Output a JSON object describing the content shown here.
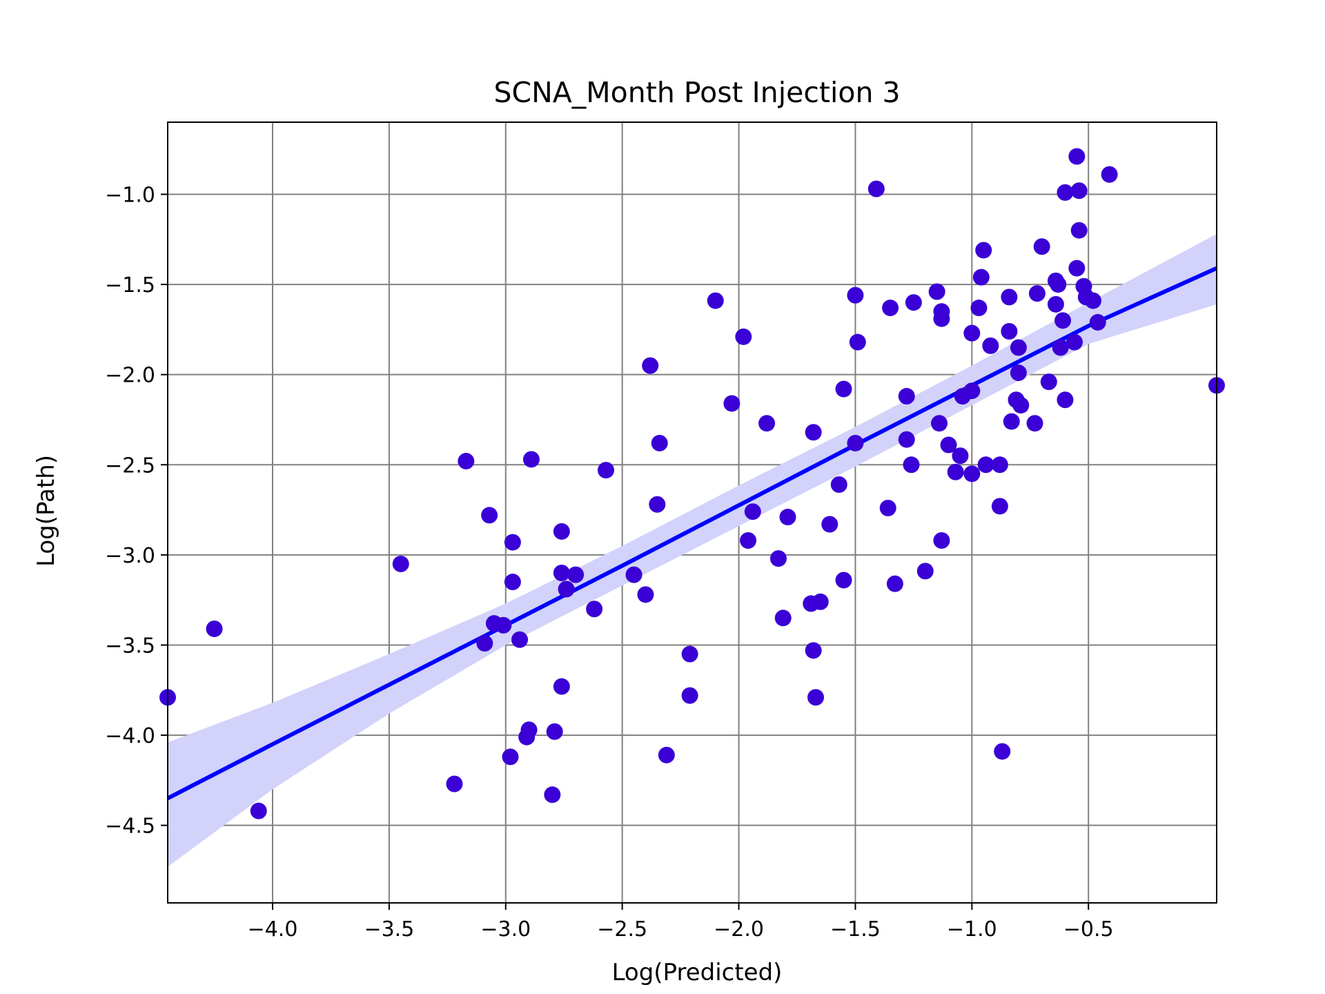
{
  "chart_data": {
    "type": "scatter",
    "title": "SCNA_Month Post Injection 3",
    "xlabel": "Log(Predicted)",
    "ylabel": "Log(Path)",
    "xlim": [
      -4.45,
      0.05
    ],
    "ylim": [
      -4.93,
      -0.6
    ],
    "x_ticks": [
      -4.0,
      -3.5,
      -3.0,
      -2.5,
      -2.0,
      -1.5,
      -1.0,
      -0.5
    ],
    "x_tick_labels": [
      "−4.0",
      "−3.5",
      "−3.0",
      "−2.5",
      "−2.0",
      "−1.5",
      "−1.0",
      "−0.5"
    ],
    "y_ticks": [
      -1.0,
      -1.5,
      -2.0,
      -2.5,
      -3.0,
      -3.5,
      -4.0,
      -4.5
    ],
    "y_tick_labels": [
      "−1.0",
      "−1.5",
      "−2.0",
      "−2.5",
      "−3.0",
      "−3.5",
      "−4.0",
      "−4.5"
    ],
    "grid": true,
    "point_color": "#3a00d6",
    "line_color": "#0000ff",
    "band_color": "#d2d2fa",
    "grid_color": "#808080",
    "regression": {
      "x": [
        -4.45,
        -4.0,
        -3.5,
        -3.0,
        -2.5,
        -2.0,
        -1.5,
        -1.0,
        -0.5,
        0.05
      ],
      "y": [
        -4.35,
        -4.05,
        -3.72,
        -3.39,
        -3.06,
        -2.725,
        -2.39,
        -2.06,
        -1.73,
        -1.41
      ],
      "lower": [
        -4.73,
        -4.3,
        -3.88,
        -3.5,
        -3.17,
        -2.84,
        -2.51,
        -2.17,
        -1.83,
        -1.61
      ],
      "upper": [
        -4.04,
        -3.82,
        -3.55,
        -3.27,
        -2.95,
        -2.615,
        -2.29,
        -1.95,
        -1.6,
        -1.22
      ]
    },
    "points": [
      {
        "x": -4.45,
        "y": -3.79
      },
      {
        "x": -4.25,
        "y": -3.41
      },
      {
        "x": -4.06,
        "y": -4.42
      },
      {
        "x": -3.45,
        "y": -3.05
      },
      {
        "x": -3.22,
        "y": -4.27
      },
      {
        "x": -3.17,
        "y": -2.48
      },
      {
        "x": -3.09,
        "y": -3.49
      },
      {
        "x": -3.07,
        "y": -2.78
      },
      {
        "x": -3.05,
        "y": -3.38
      },
      {
        "x": -3.01,
        "y": -3.39
      },
      {
        "x": -2.98,
        "y": -4.12
      },
      {
        "x": -2.97,
        "y": -3.15
      },
      {
        "x": -2.97,
        "y": -2.93
      },
      {
        "x": -2.94,
        "y": -3.47
      },
      {
        "x": -2.91,
        "y": -4.01
      },
      {
        "x": -2.9,
        "y": -3.97
      },
      {
        "x": -2.89,
        "y": -2.47
      },
      {
        "x": -2.8,
        "y": -4.33
      },
      {
        "x": -2.79,
        "y": -3.98
      },
      {
        "x": -2.76,
        "y": -3.73
      },
      {
        "x": -2.76,
        "y": -3.1
      },
      {
        "x": -2.76,
        "y": -2.87
      },
      {
        "x": -2.74,
        "y": -3.19
      },
      {
        "x": -2.7,
        "y": -3.11
      },
      {
        "x": -2.62,
        "y": -3.3
      },
      {
        "x": -2.57,
        "y": -2.53
      },
      {
        "x": -2.45,
        "y": -3.11
      },
      {
        "x": -2.4,
        "y": -3.22
      },
      {
        "x": -2.38,
        "y": -1.95
      },
      {
        "x": -2.35,
        "y": -2.72
      },
      {
        "x": -2.34,
        "y": -2.38
      },
      {
        "x": -2.31,
        "y": -4.11
      },
      {
        "x": -2.21,
        "y": -3.55
      },
      {
        "x": -2.21,
        "y": -3.78
      },
      {
        "x": -2.1,
        "y": -1.59
      },
      {
        "x": -2.03,
        "y": -2.16
      },
      {
        "x": -1.98,
        "y": -1.79
      },
      {
        "x": -1.96,
        "y": -2.92
      },
      {
        "x": -1.94,
        "y": -2.76
      },
      {
        "x": -1.88,
        "y": -2.27
      },
      {
        "x": -1.83,
        "y": -3.02
      },
      {
        "x": -1.81,
        "y": -3.35
      },
      {
        "x": -1.79,
        "y": -2.79
      },
      {
        "x": -1.69,
        "y": -3.27
      },
      {
        "x": -1.68,
        "y": -3.53
      },
      {
        "x": -1.68,
        "y": -2.32
      },
      {
        "x": -1.67,
        "y": -3.79
      },
      {
        "x": -1.65,
        "y": -3.26
      },
      {
        "x": -1.61,
        "y": -2.83
      },
      {
        "x": -1.57,
        "y": -2.61
      },
      {
        "x": -1.55,
        "y": -3.14
      },
      {
        "x": -1.55,
        "y": -2.08
      },
      {
        "x": -1.5,
        "y": -2.38
      },
      {
        "x": -1.5,
        "y": -1.56
      },
      {
        "x": -1.49,
        "y": -1.82
      },
      {
        "x": -1.41,
        "y": -0.97
      },
      {
        "x": -1.36,
        "y": -2.74
      },
      {
        "x": -1.35,
        "y": -1.63
      },
      {
        "x": -1.33,
        "y": -3.16
      },
      {
        "x": -1.28,
        "y": -2.12
      },
      {
        "x": -1.28,
        "y": -2.36
      },
      {
        "x": -1.26,
        "y": -2.5
      },
      {
        "x": -1.25,
        "y": -1.6
      },
      {
        "x": -1.2,
        "y": -3.09
      },
      {
        "x": -1.15,
        "y": -1.54
      },
      {
        "x": -1.14,
        "y": -2.27
      },
      {
        "x": -1.13,
        "y": -1.65
      },
      {
        "x": -1.13,
        "y": -1.69
      },
      {
        "x": -1.13,
        "y": -2.92
      },
      {
        "x": -1.1,
        "y": -2.39
      },
      {
        "x": -1.07,
        "y": -2.54
      },
      {
        "x": -1.05,
        "y": -2.45
      },
      {
        "x": -1.04,
        "y": -2.12
      },
      {
        "x": -1.0,
        "y": -2.09
      },
      {
        "x": -1.0,
        "y": -2.55
      },
      {
        "x": -1.0,
        "y": -1.77
      },
      {
        "x": -0.97,
        "y": -1.63
      },
      {
        "x": -0.96,
        "y": -1.46
      },
      {
        "x": -0.95,
        "y": -1.31
      },
      {
        "x": -0.94,
        "y": -2.5
      },
      {
        "x": -0.92,
        "y": -1.84
      },
      {
        "x": -0.88,
        "y": -2.5
      },
      {
        "x": -0.88,
        "y": -2.73
      },
      {
        "x": -0.87,
        "y": -4.09
      },
      {
        "x": -0.84,
        "y": -1.57
      },
      {
        "x": -0.84,
        "y": -1.76
      },
      {
        "x": -0.83,
        "y": -2.26
      },
      {
        "x": -0.81,
        "y": -2.14
      },
      {
        "x": -0.8,
        "y": -1.85
      },
      {
        "x": -0.8,
        "y": -1.99
      },
      {
        "x": -0.79,
        "y": -2.17
      },
      {
        "x": -0.73,
        "y": -2.27
      },
      {
        "x": -0.72,
        "y": -1.55
      },
      {
        "x": -0.7,
        "y": -1.29
      },
      {
        "x": -0.67,
        "y": -2.04
      },
      {
        "x": -0.64,
        "y": -1.48
      },
      {
        "x": -0.64,
        "y": -1.61
      },
      {
        "x": -0.63,
        "y": -1.5
      },
      {
        "x": -0.62,
        "y": -1.85
      },
      {
        "x": -0.61,
        "y": -1.7
      },
      {
        "x": -0.6,
        "y": -0.99
      },
      {
        "x": -0.6,
        "y": -2.14
      },
      {
        "x": -0.56,
        "y": -1.82
      },
      {
        "x": -0.55,
        "y": -1.41
      },
      {
        "x": -0.55,
        "y": -0.79
      },
      {
        "x": -0.54,
        "y": -0.98
      },
      {
        "x": -0.54,
        "y": -1.2
      },
      {
        "x": -0.52,
        "y": -1.51
      },
      {
        "x": -0.51,
        "y": -1.57
      },
      {
        "x": -0.48,
        "y": -1.59
      },
      {
        "x": -0.46,
        "y": -1.71
      },
      {
        "x": -0.41,
        "y": -0.89
      },
      {
        "x": 0.05,
        "y": -2.06
      }
    ]
  }
}
